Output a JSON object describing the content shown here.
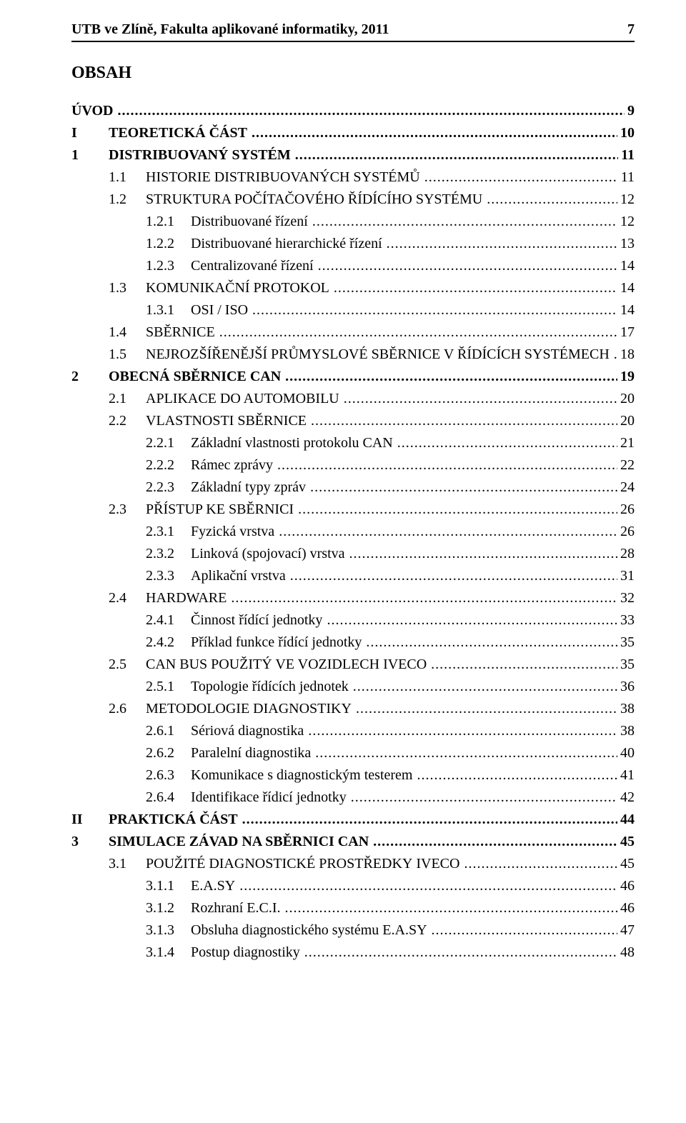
{
  "header": {
    "title": "UTB ve Zlíně, Fakulta aplikované informatiky, 2011",
    "page_number": "7"
  },
  "obsah_heading": "OBSAH",
  "leader_dots": ".................................................................................................................................................................................................",
  "toc": [
    {
      "level": "uvod",
      "bold": true,
      "num": "",
      "label_html": "ÚVOD",
      "page": "9"
    },
    {
      "level": "part",
      "bold": true,
      "num": "I",
      "label_html": "TEORETICKÁ ČÁST",
      "page": "10"
    },
    {
      "level": "1",
      "bold": true,
      "num": "1",
      "label_html": "DISTRIBUOVANÝ SYSTÉM",
      "page": "11"
    },
    {
      "level": "11",
      "bold": false,
      "num": "1.1",
      "label_html": "H<span class=\"sc\">ISTORIE DISTRIBUOVANÝCH SYSTÉMŮ</span>",
      "page": "11"
    },
    {
      "level": "11",
      "bold": false,
      "num": "1.2",
      "label_html": "S<span class=\"sc\">TRUKTURA POČÍTAČOVÉHO ŘÍDÍCÍHO SYSTÉMU</span>",
      "page": "12"
    },
    {
      "level": "111",
      "bold": false,
      "num": "1.2.1",
      "label_html": "Distribuované řízení",
      "page": "12"
    },
    {
      "level": "111",
      "bold": false,
      "num": "1.2.2",
      "label_html": "Distribuované hierarchické řízení",
      "page": "13"
    },
    {
      "level": "111",
      "bold": false,
      "num": "1.2.3",
      "label_html": "Centralizované řízení",
      "page": "14"
    },
    {
      "level": "11",
      "bold": false,
      "num": "1.3",
      "label_html": "K<span class=\"sc\">OMUNIKAČNÍ PROTOKOL</span>",
      "page": "14"
    },
    {
      "level": "111",
      "bold": false,
      "num": "1.3.1",
      "label_html": "OSI / ISO",
      "page": "14"
    },
    {
      "level": "11",
      "bold": false,
      "num": "1.4",
      "label_html": "S<span class=\"sc\">BĚRNICE</span>",
      "page": "17"
    },
    {
      "level": "11",
      "bold": false,
      "num": "1.5",
      "label_html": "N<span class=\"sc\">EJROZŠÍŘENĚJŠÍ PRŮMYSLOVÉ SBĚRNICE V ŘÍDÍCÍCH SYSTÉMECH</span>",
      "page": "18"
    },
    {
      "level": "1",
      "bold": true,
      "num": "2",
      "label_html": "OBECNÁ SBĚRNICE CAN",
      "page": "19"
    },
    {
      "level": "11",
      "bold": false,
      "num": "2.1",
      "label_html": "A<span class=\"sc\">PLIKACE DO AUTOMOBILU</span>",
      "page": "20"
    },
    {
      "level": "11",
      "bold": false,
      "num": "2.2",
      "label_html": "V<span class=\"sc\">LASTNOSTI SBĚRNICE</span>",
      "page": "20"
    },
    {
      "level": "111",
      "bold": false,
      "num": "2.2.1",
      "label_html": "Základní vlastnosti protokolu CAN",
      "page": "21"
    },
    {
      "level": "111",
      "bold": false,
      "num": "2.2.2",
      "label_html": "Rámec zprávy",
      "page": "22"
    },
    {
      "level": "111",
      "bold": false,
      "num": "2.2.3",
      "label_html": "Základní typy zpráv",
      "page": "24"
    },
    {
      "level": "11",
      "bold": false,
      "num": "2.3",
      "label_html": "P<span class=\"sc\">ŘÍSTUP KE SBĚRNICI</span>",
      "page": "26"
    },
    {
      "level": "111",
      "bold": false,
      "num": "2.3.1",
      "label_html": "Fyzická vrstva",
      "page": "26"
    },
    {
      "level": "111",
      "bold": false,
      "num": "2.3.2",
      "label_html": "Linková (spojovací) vrstva",
      "page": "28"
    },
    {
      "level": "111",
      "bold": false,
      "num": "2.3.3",
      "label_html": "Aplikační vrstva",
      "page": "31"
    },
    {
      "level": "11",
      "bold": false,
      "num": "2.4",
      "label_html": "H<span class=\"sc\">ARDWARE</span>",
      "page": "32"
    },
    {
      "level": "111",
      "bold": false,
      "num": "2.4.1",
      "label_html": "Činnost řídící jednotky",
      "page": "33"
    },
    {
      "level": "111",
      "bold": false,
      "num": "2.4.2",
      "label_html": "Příklad funkce řídící jednotky",
      "page": "35"
    },
    {
      "level": "11",
      "bold": false,
      "num": "2.5",
      "label_html": "CAN BUS <span class=\"sc\">POUŽITÝ VE VOZIDLECH</span> IVECO",
      "page": "35"
    },
    {
      "level": "111",
      "bold": false,
      "num": "2.5.1",
      "label_html": "Topologie řídících jednotek",
      "page": "36"
    },
    {
      "level": "11",
      "bold": false,
      "num": "2.6",
      "label_html": "M<span class=\"sc\">ETODOLOGIE DIAGNOSTIKY</span>",
      "page": "38"
    },
    {
      "level": "111",
      "bold": false,
      "num": "2.6.1",
      "label_html": "Sériová diagnostika",
      "page": "38"
    },
    {
      "level": "111",
      "bold": false,
      "num": "2.6.2",
      "label_html": "Paralelní diagnostika",
      "page": "40"
    },
    {
      "level": "111",
      "bold": false,
      "num": "2.6.3",
      "label_html": "Komunikace s diagnostickým testerem",
      "page": "41"
    },
    {
      "level": "111",
      "bold": false,
      "num": "2.6.4",
      "label_html": "Identifikace řídicí jednotky",
      "page": "42"
    },
    {
      "level": "part",
      "bold": true,
      "num": "II",
      "label_html": "PRAKTICKÁ ČÁST",
      "page": "44"
    },
    {
      "level": "1",
      "bold": true,
      "num": "3",
      "label_html": "SIMULACE ZÁVAD NA SBĚRNICI CAN",
      "page": "45"
    },
    {
      "level": "11",
      "bold": false,
      "num": "3.1",
      "label_html": "P<span class=\"sc\">OUŽITÉ DIAGNOSTICKÉ PROSTŘEDKY</span> IVECO",
      "page": "45"
    },
    {
      "level": "111",
      "bold": false,
      "num": "3.1.1",
      "label_html": "E.A.SY",
      "page": "46"
    },
    {
      "level": "111",
      "bold": false,
      "num": "3.1.2",
      "label_html": "Rozhraní E.C.I.",
      "page": "46"
    },
    {
      "level": "111",
      "bold": false,
      "num": "3.1.3",
      "label_html": "Obsluha diagnostického systému E.A.SY",
      "page": "47"
    },
    {
      "level": "111",
      "bold": false,
      "num": "3.1.4",
      "label_html": "Postup diagnostiky",
      "page": "48"
    }
  ]
}
